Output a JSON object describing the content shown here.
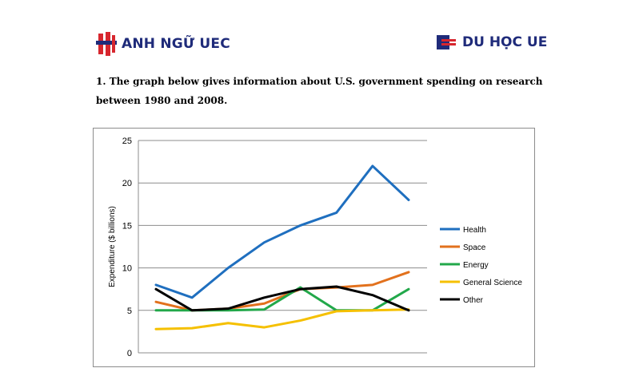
{
  "header": {
    "left_brand": "ANH NGỮ UEC",
    "right_brand": "DU HỌC UE",
    "left_logo_icon": "uec-logo-icon",
    "right_logo_icon": "ue-logo-icon",
    "brand_blue": "#1f2b7a",
    "brand_red": "#d7262e"
  },
  "question": {
    "text": "1. The graph below gives information about U.S. government spending on research between 1980 and 2008."
  },
  "chart_data": {
    "type": "line",
    "title": "",
    "xlabel": "",
    "ylabel": "Expenditure ($ billions)",
    "ylim": [
      0,
      25
    ],
    "yticks": [
      "0",
      "5",
      "10",
      "15",
      "20",
      "25"
    ],
    "grid": true,
    "legend_position": "right",
    "series": [
      {
        "name": "Health",
        "color": "#1f6fbf",
        "values": [
          8,
          6.5,
          10,
          13,
          15,
          16.5,
          22,
          18
        ]
      },
      {
        "name": "Space",
        "color": "#e2711d",
        "values": [
          6,
          5,
          5.2,
          5.8,
          7.5,
          7.7,
          8,
          9.5
        ]
      },
      {
        "name": "Energy",
        "color": "#22a84a",
        "values": [
          5,
          5,
          5,
          5.1,
          7.7,
          5,
          5,
          7.5
        ]
      },
      {
        "name": "General Science",
        "color": "#f5c000",
        "values": [
          2.8,
          2.9,
          3.5,
          3,
          3.8,
          4.9,
          5,
          5.1
        ]
      },
      {
        "name": "Other",
        "color": "#000000",
        "values": [
          7.5,
          5,
          5.2,
          6.5,
          7.5,
          7.8,
          6.8,
          5
        ]
      }
    ]
  }
}
